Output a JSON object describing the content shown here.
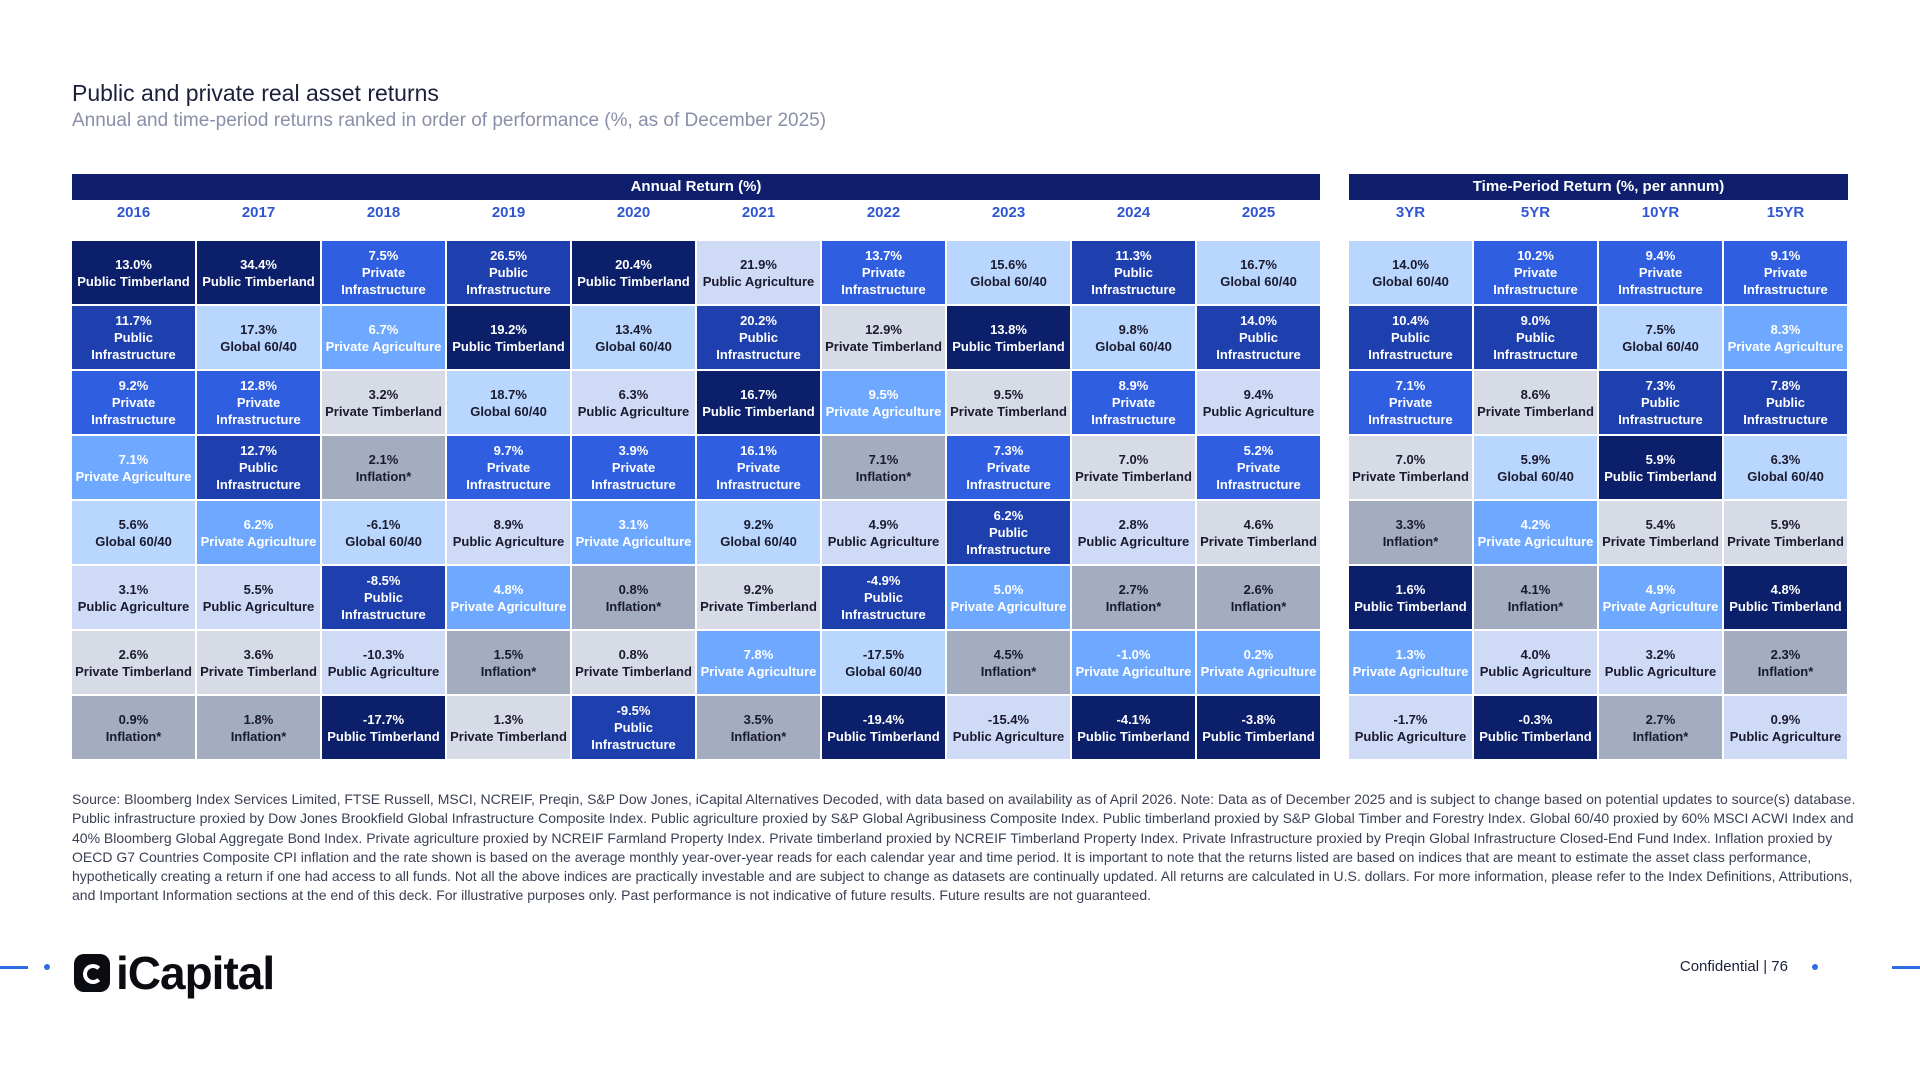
{
  "title": "Public and private real asset returns",
  "subtitle": "Annual and time-period returns ranked in order of performance (%, as of December 2025)",
  "annual": {
    "header": "Annual Return (%)",
    "years": [
      "2016",
      "2017",
      "2018",
      "2019",
      "2020",
      "2021",
      "2022",
      "2023",
      "2024",
      "2025"
    ],
    "columns": [
      [
        [
          "13.0%",
          "Public Timberland"
        ],
        [
          "11.7%",
          "Public Infrastructure"
        ],
        [
          "9.2%",
          "Private Infrastructure"
        ],
        [
          "7.1%",
          "Private Agriculture"
        ],
        [
          "5.6%",
          "Global 60/40"
        ],
        [
          "3.1%",
          "Public Agriculture"
        ],
        [
          "2.6%",
          "Private Timberland"
        ],
        [
          "0.9%",
          "Inflation*"
        ]
      ],
      [
        [
          "34.4%",
          "Public Timberland"
        ],
        [
          "17.3%",
          "Global 60/40"
        ],
        [
          "12.8%",
          "Private Infrastructure"
        ],
        [
          "12.7%",
          "Public Infrastructure"
        ],
        [
          "6.2%",
          "Private Agriculture"
        ],
        [
          "5.5%",
          "Public Agriculture"
        ],
        [
          "3.6%",
          "Private Timberland"
        ],
        [
          "1.8%",
          "Inflation*"
        ]
      ],
      [
        [
          "7.5%",
          "Private Infrastructure"
        ],
        [
          "6.7%",
          "Private Agriculture"
        ],
        [
          "3.2%",
          "Private Timberland"
        ],
        [
          "2.1%",
          "Inflation*"
        ],
        [
          "-6.1%",
          "Global 60/40"
        ],
        [
          "-8.5%",
          "Public Infrastructure"
        ],
        [
          "-10.3%",
          "Public Agriculture"
        ],
        [
          "-17.7%",
          "Public Timberland"
        ]
      ],
      [
        [
          "26.5%",
          "Public Infrastructure"
        ],
        [
          "19.2%",
          "Public Timberland"
        ],
        [
          "18.7%",
          "Global 60/40"
        ],
        [
          "9.7%",
          "Private Infrastructure"
        ],
        [
          "8.9%",
          "Public Agriculture"
        ],
        [
          "4.8%",
          "Private Agriculture"
        ],
        [
          "1.5%",
          "Inflation*"
        ],
        [
          "1.3%",
          "Private Timberland"
        ]
      ],
      [
        [
          "20.4%",
          "Public Timberland"
        ],
        [
          "13.4%",
          "Global 60/40"
        ],
        [
          "6.3%",
          "Public Agriculture"
        ],
        [
          "3.9%",
          "Private Infrastructure"
        ],
        [
          "3.1%",
          "Private Agriculture"
        ],
        [
          "0.8%",
          "Inflation*"
        ],
        [
          "0.8%",
          "Private Timberland"
        ],
        [
          "-9.5%",
          "Public Infrastructure"
        ]
      ],
      [
        [
          "21.9%",
          "Public Agriculture"
        ],
        [
          "20.2%",
          "Public Infrastructure"
        ],
        [
          "16.7%",
          "Public Timberland"
        ],
        [
          "16.1%",
          "Private Infrastructure"
        ],
        [
          "9.2%",
          "Global 60/40"
        ],
        [
          "9.2%",
          "Private Timberland"
        ],
        [
          "7.8%",
          "Private Agriculture"
        ],
        [
          "3.5%",
          "Inflation*"
        ]
      ],
      [
        [
          "13.7%",
          "Private Infrastructure"
        ],
        [
          "12.9%",
          "Private Timberland"
        ],
        [
          "9.5%",
          "Private Agriculture"
        ],
        [
          "7.1%",
          "Inflation*"
        ],
        [
          "4.9%",
          "Public Agriculture"
        ],
        [
          "-4.9%",
          "Public Infrastructure"
        ],
        [
          "-17.5%",
          "Global 60/40"
        ],
        [
          "-19.4%",
          "Public Timberland"
        ]
      ],
      [
        [
          "15.6%",
          "Global 60/40"
        ],
        [
          "13.8%",
          "Public Timberland"
        ],
        [
          "9.5%",
          "Private Timberland"
        ],
        [
          "7.3%",
          "Private Infrastructure"
        ],
        [
          "6.2%",
          "Public Infrastructure"
        ],
        [
          "5.0%",
          "Private Agriculture"
        ],
        [
          "4.5%",
          "Inflation*"
        ],
        [
          "-15.4%",
          "Public Agriculture"
        ]
      ],
      [
        [
          "11.3%",
          "Public Infrastructure"
        ],
        [
          "9.8%",
          "Global 60/40"
        ],
        [
          "8.9%",
          "Private Infrastructure"
        ],
        [
          "7.0%",
          "Private Timberland"
        ],
        [
          "2.8%",
          "Public Agriculture"
        ],
        [
          "2.7%",
          "Inflation*"
        ],
        [
          "-1.0%",
          "Private Agriculture"
        ],
        [
          "-4.1%",
          "Public Timberland"
        ]
      ],
      [
        [
          "16.7%",
          "Global 60/40"
        ],
        [
          "14.0%",
          "Public Infrastructure"
        ],
        [
          "9.4%",
          "Public Agriculture"
        ],
        [
          "5.2%",
          "Private Infrastructure"
        ],
        [
          "4.6%",
          "Private Timberland"
        ],
        [
          "2.6%",
          "Inflation*"
        ],
        [
          "0.2%",
          "Private Agriculture"
        ],
        [
          "-3.8%",
          "Public Timberland"
        ]
      ]
    ]
  },
  "period": {
    "header": "Time-Period Return (%, per annum)",
    "years": [
      "3YR",
      "5YR",
      "10YR",
      "15YR"
    ],
    "columns": [
      [
        [
          "14.0%",
          "Global 60/40"
        ],
        [
          "10.4%",
          "Public Infrastructure"
        ],
        [
          "7.1%",
          "Private Infrastructure"
        ],
        [
          "7.0%",
          "Private Timberland"
        ],
        [
          "3.3%",
          "Inflation*"
        ],
        [
          "1.6%",
          "Public Timberland"
        ],
        [
          "1.3%",
          "Private Agriculture"
        ],
        [
          "-1.7%",
          "Public Agriculture"
        ]
      ],
      [
        [
          "10.2%",
          "Private Infrastructure"
        ],
        [
          "9.0%",
          "Public Infrastructure"
        ],
        [
          "8.6%",
          "Private Timberland"
        ],
        [
          "5.9%",
          "Global 60/40"
        ],
        [
          "4.2%",
          "Private Agriculture"
        ],
        [
          "4.1%",
          "Inflation*"
        ],
        [
          "4.0%",
          "Public Agriculture"
        ],
        [
          "-0.3%",
          "Public Timberland"
        ]
      ],
      [
        [
          "9.4%",
          "Private Infrastructure"
        ],
        [
          "7.5%",
          "Global 60/40"
        ],
        [
          "7.3%",
          "Public Infrastructure"
        ],
        [
          "5.9%",
          "Public Timberland"
        ],
        [
          "5.4%",
          "Private Timberland"
        ],
        [
          "4.9%",
          "Private Agriculture"
        ],
        [
          "3.2%",
          "Public Agriculture"
        ],
        [
          "2.7%",
          "Inflation*"
        ]
      ],
      [
        [
          "9.1%",
          "Private Infrastructure"
        ],
        [
          "8.3%",
          "Private Agriculture"
        ],
        [
          "7.8%",
          "Public Infrastructure"
        ],
        [
          "6.3%",
          "Global 60/40"
        ],
        [
          "5.9%",
          "Private Timberland"
        ],
        [
          "4.8%",
          "Public Timberland"
        ],
        [
          "2.3%",
          "Inflation*"
        ],
        [
          "0.9%",
          "Public Agriculture"
        ]
      ]
    ]
  },
  "asset_colors": {
    "Public Timberland": {
      "bg": "#0c1f6b",
      "fg": "#ffffff"
    },
    "Public Infrastructure": {
      "bg": "#1e3fae",
      "fg": "#ffffff"
    },
    "Private Infrastructure": {
      "bg": "#2f5fe0",
      "fg": "#ffffff"
    },
    "Private Agriculture": {
      "bg": "#6ea8ff",
      "fg": "#ffffff"
    },
    "Global 60/40": {
      "bg": "#b9d6ff",
      "fg": "#1a1a2e"
    },
    "Public Agriculture": {
      "bg": "#cfdaf7",
      "fg": "#1a1a2e"
    },
    "Private Timberland": {
      "bg": "#d7dbe6",
      "fg": "#1a1a2e"
    },
    "Inflation*": {
      "bg": "#a4adc0",
      "fg": "#1a1a2e"
    }
  },
  "source": "Source: Bloomberg Index Services Limited, FTSE Russell, MSCI, NCREIF, Preqin, S&P Dow Jones, iCapital Alternatives Decoded, with data based on availability as of April 2026. Note: Data as of December 2025 and is subject to change based on potential updates to source(s) database. Public infrastructure proxied by Dow Jones Brookfield Global Infrastructure Composite Index. Public agriculture proxied by S&P Global Agribusiness Composite Index. Public timberland proxied by S&P Global Timber and Forestry Index. Global 60/40 proxied by 60% MSCI ACWI Index and 40% Bloomberg Global Aggregate Bond Index. Private agriculture proxied by NCREIF Farmland Property Index. Private timberland proxied by NCREIF Timberland Property Index. Private Infrastructure proxied by Preqin Global Infrastructure Closed-End Fund Index. Inflation proxied by OECD G7 Countries Composite CPI inflation and the rate shown is based on the average monthly year-over-year reads for each calendar year and time period. It is important to note that the returns listed are based on indices that are meant to estimate the asset class performance, hypothetically creating a return if one had access to all funds. Not all the above indices are practically investable and are subject to change as datasets are continually updated. All returns are calculated in U.S. dollars. For more information, please refer to the Index Definitions, Attributions, and Important Information sections at the end of this deck. For illustrative purposes only. Past performance is not indicative of future results. Future results are not guaranteed.",
  "footer": {
    "logo_text": "iCapital",
    "confidential": "Confidential  |  76"
  }
}
